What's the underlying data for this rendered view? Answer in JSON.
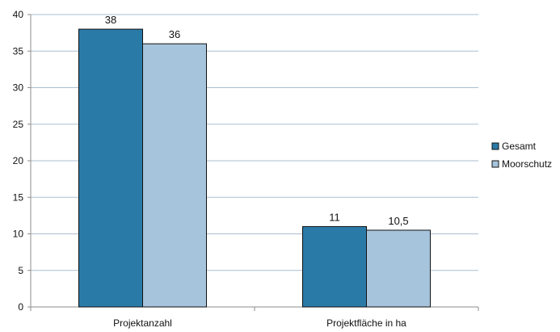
{
  "chart_data": {
    "type": "bar",
    "categories": [
      "Projektanzahl",
      "Projektfläche in ha"
    ],
    "series": [
      {
        "name": "Gesamt",
        "values": [
          38,
          11
        ],
        "labels": [
          "38",
          "11"
        ],
        "color": "#2a7aa8"
      },
      {
        "name": "Moorschutz",
        "values": [
          36,
          10.5
        ],
        "labels": [
          "36",
          "10,5"
        ],
        "color": "#a6c4dc"
      }
    ],
    "ylim": [
      0,
      40
    ],
    "yticks": [
      0,
      5,
      10,
      15,
      20,
      25,
      30,
      35,
      40
    ],
    "grid": true,
    "legend": "right",
    "gridline_color": "#a9bfd2",
    "axis_color": "#8d8d8d",
    "bar_border_color": "#111111"
  }
}
